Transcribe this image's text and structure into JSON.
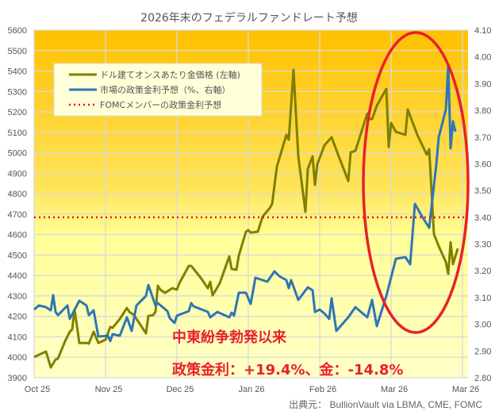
{
  "chart_data": {
    "type": "line",
    "title": "2026年末のフェデラルファンドレート予想",
    "x_ticks": [
      {
        "date": "2025-10-01",
        "label": "Oct 25"
      },
      {
        "date": "2025-10-31",
        "label": "Nov 25"
      },
      {
        "date": "2025-11-30",
        "label": "Dec 25"
      },
      {
        "date": "2025-12-30",
        "label": "Jan 26"
      },
      {
        "date": "2026-01-29",
        "label": "Feb 26"
      },
      {
        "date": "2026-02-28",
        "label": "Mar 26"
      },
      {
        "date": "2026-03-30",
        "label": "Mar 26"
      }
    ],
    "y_left": {
      "min": 3900,
      "max": 5600,
      "step": 100,
      "ticks": [
        "3900",
        "4000",
        "4100",
        "4200",
        "4300",
        "4400",
        "4500",
        "4600",
        "4700",
        "4800",
        "4900",
        "5000",
        "5100",
        "5200",
        "5300",
        "5400",
        "5500",
        "5600"
      ]
    },
    "y_right": {
      "min": 2.8,
      "max": 4.1,
      "step": 0.1,
      "ticks": [
        "2.80",
        "2.90",
        "3.00",
        "3.10",
        "3.20",
        "3.30",
        "3.40",
        "3.50",
        "3.60",
        "3.70",
        "3.80",
        "3.90",
        "4.00",
        "4.10"
      ]
    },
    "grid": true,
    "legend_position": "top-left",
    "series": [
      {
        "name": "ドル建てオンスあたり金価格 (左軸)",
        "axis": "left",
        "color": "#7f7f00",
        "points": [
          [
            "2025-10-01",
            4001
          ],
          [
            "2025-10-03",
            4012
          ],
          [
            "2025-10-06",
            4028
          ],
          [
            "2025-10-08",
            3950
          ],
          [
            "2025-10-10",
            3989
          ],
          [
            "2025-10-11",
            3993
          ],
          [
            "2025-10-14",
            4078
          ],
          [
            "2025-10-16",
            4125
          ],
          [
            "2025-10-17",
            4136
          ],
          [
            "2025-10-18",
            4234
          ],
          [
            "2025-10-20",
            4070
          ],
          [
            "2025-10-23",
            4070
          ],
          [
            "2025-10-24",
            4067
          ],
          [
            "2025-10-26",
            4125
          ],
          [
            "2025-10-28",
            4070
          ],
          [
            "2025-10-31",
            4086
          ],
          [
            "2025-11-02",
            4148
          ],
          [
            "2025-11-03",
            4144
          ],
          [
            "2025-11-06",
            4187
          ],
          [
            "2025-11-09",
            4241
          ],
          [
            "2025-11-10",
            4222
          ],
          [
            "2025-11-12",
            4206
          ],
          [
            "2025-11-17",
            4117
          ],
          [
            "2025-11-18",
            4202
          ],
          [
            "2025-11-20",
            4206
          ],
          [
            "2025-11-21",
            4222
          ],
          [
            "2025-11-22",
            4350
          ],
          [
            "2025-11-23",
            4331
          ],
          [
            "2025-11-25",
            4315
          ],
          [
            "2025-11-28",
            4338
          ],
          [
            "2025-11-30",
            4331
          ],
          [
            "2025-12-01",
            4362
          ],
          [
            "2025-12-05",
            4447
          ],
          [
            "2025-12-06",
            4447
          ],
          [
            "2025-12-10",
            4389
          ],
          [
            "2025-12-13",
            4338
          ],
          [
            "2025-12-14",
            4369
          ],
          [
            "2025-12-15",
            4303
          ],
          [
            "2025-12-18",
            4362
          ],
          [
            "2025-12-22",
            4494
          ],
          [
            "2025-12-23",
            4432
          ],
          [
            "2025-12-25",
            4428
          ],
          [
            "2025-12-26",
            4497
          ],
          [
            "2025-12-29",
            4614
          ],
          [
            "2025-12-30",
            4622
          ],
          [
            "2025-12-31",
            4610
          ],
          [
            "2026-01-03",
            4614
          ],
          [
            "2026-01-05",
            4688
          ],
          [
            "2026-01-08",
            4730
          ],
          [
            "2026-01-09",
            4750
          ],
          [
            "2026-01-11",
            4932
          ],
          [
            "2026-01-15",
            5088
          ],
          [
            "2026-01-16",
            5064
          ],
          [
            "2026-01-18",
            5406
          ],
          [
            "2026-01-20",
            4983
          ],
          [
            "2026-01-23",
            4711
          ],
          [
            "2026-01-24",
            4921
          ],
          [
            "2026-01-26",
            4983
          ],
          [
            "2026-01-27",
            4843
          ],
          [
            "2026-01-28",
            4944
          ],
          [
            "2026-01-31",
            5037
          ],
          [
            "2026-02-03",
            5076
          ],
          [
            "2026-02-06",
            4983
          ],
          [
            "2026-02-10",
            4862
          ],
          [
            "2026-02-11",
            5002
          ],
          [
            "2026-02-13",
            5010
          ],
          [
            "2026-02-18",
            5192
          ],
          [
            "2026-02-19",
            5165
          ],
          [
            "2026-02-20",
            5165
          ],
          [
            "2026-02-22",
            5231
          ],
          [
            "2026-02-26",
            5313
          ],
          [
            "2026-02-27",
            5029
          ],
          [
            "2026-02-28",
            5146
          ],
          [
            "2026-03-02",
            5103
          ],
          [
            "2026-03-06",
            5088
          ],
          [
            "2026-03-07",
            5212
          ],
          [
            "2026-03-11",
            5088
          ],
          [
            "2026-03-15",
            4991
          ],
          [
            "2026-03-16",
            5018
          ],
          [
            "2026-03-18",
            4602
          ],
          [
            "2026-03-20",
            4544
          ],
          [
            "2026-03-23",
            4466
          ],
          [
            "2026-03-24",
            4408
          ],
          [
            "2026-03-25",
            4563
          ],
          [
            "2026-03-26",
            4455
          ],
          [
            "2026-03-28",
            4532
          ]
        ]
      },
      {
        "name": "市場の政策金利予想（%、右軸）",
        "axis": "right",
        "color": "#2e75b6",
        "points": [
          [
            "2025-10-01",
            3.055
          ],
          [
            "2025-10-03",
            3.07
          ],
          [
            "2025-10-06",
            3.064
          ],
          [
            "2025-10-08",
            3.052
          ],
          [
            "2025-10-09",
            3.109
          ],
          [
            "2025-10-10",
            3.046
          ],
          [
            "2025-10-11",
            3.034
          ],
          [
            "2025-10-15",
            3.07
          ],
          [
            "2025-10-16",
            3.02
          ],
          [
            "2025-10-20",
            3.088
          ],
          [
            "2025-10-23",
            3.07
          ],
          [
            "2025-10-24",
            3.034
          ],
          [
            "2025-10-26",
            3.052
          ],
          [
            "2025-10-28",
            2.954
          ],
          [
            "2025-11-01",
            2.957
          ],
          [
            "2025-11-02",
            2.937
          ],
          [
            "2025-11-03",
            2.963
          ],
          [
            "2025-11-06",
            2.957
          ],
          [
            "2025-11-09",
            3.026
          ],
          [
            "2025-11-11",
            2.975
          ],
          [
            "2025-11-13",
            3.07
          ],
          [
            "2025-11-17",
            3.106
          ],
          [
            "2025-11-18",
            3.147
          ],
          [
            "2025-11-21",
            3.07
          ],
          [
            "2025-11-22",
            3.079
          ],
          [
            "2025-11-26",
            3.049
          ],
          [
            "2025-11-27",
            3.023
          ],
          [
            "2025-11-29",
            3.005
          ],
          [
            "2025-11-30",
            3.032
          ],
          [
            "2025-12-05",
            3.049
          ],
          [
            "2025-12-06",
            3.079
          ],
          [
            "2025-12-07",
            3.067
          ],
          [
            "2025-12-13",
            3.046
          ],
          [
            "2025-12-14",
            3.026
          ],
          [
            "2025-12-17",
            3.046
          ],
          [
            "2025-12-22",
            3.026
          ],
          [
            "2025-12-23",
            3.043
          ],
          [
            "2025-12-24",
            3.032
          ],
          [
            "2025-12-26",
            3.118
          ],
          [
            "2025-12-29",
            3.118
          ],
          [
            "2025-12-31",
            3.076
          ],
          [
            "2026-01-02",
            3.174
          ],
          [
            "2026-01-07",
            3.159
          ],
          [
            "2026-01-10",
            3.198
          ],
          [
            "2026-01-12",
            3.18
          ],
          [
            "2026-01-15",
            3.165
          ],
          [
            "2026-01-16",
            3.135
          ],
          [
            "2026-01-17",
            3.165
          ],
          [
            "2026-01-20",
            3.091
          ],
          [
            "2026-01-24",
            3.138
          ],
          [
            "2026-01-26",
            3.127
          ],
          [
            "2026-01-27",
            3.046
          ],
          [
            "2026-01-29",
            3.055
          ],
          [
            "2026-01-31",
            3.04
          ],
          [
            "2026-02-02",
            3.02
          ],
          [
            "2026-02-03",
            3.097
          ],
          [
            "2026-02-05",
            2.975
          ],
          [
            "2026-02-10",
            3.026
          ],
          [
            "2026-02-13",
            3.064
          ],
          [
            "2026-02-18",
            3.026
          ],
          [
            "2026-02-20",
            3.091
          ],
          [
            "2026-02-22",
            2.993
          ],
          [
            "2026-02-26",
            3.106
          ],
          [
            "2026-03-02",
            3.245
          ],
          [
            "2026-03-06",
            3.251
          ],
          [
            "2026-03-08",
            3.224
          ],
          [
            "2026-03-10",
            3.45
          ],
          [
            "2026-03-13",
            3.403
          ],
          [
            "2026-03-16",
            3.361
          ],
          [
            "2026-03-19",
            3.598
          ],
          [
            "2026-03-20",
            3.699
          ],
          [
            "2026-03-23",
            3.803
          ],
          [
            "2026-03-24",
            3.966
          ],
          [
            "2026-03-25",
            3.658
          ],
          [
            "2026-03-26",
            3.759
          ],
          [
            "2026-03-27",
            3.72
          ]
        ]
      },
      {
        "name": "FOMCメンバーの政策金利予想",
        "axis": "right",
        "color": "#ff0000",
        "style": "dotted",
        "value": 3.4
      }
    ],
    "annotations": {
      "line1": "中東紛争勃発以来",
      "line2": "政策金利：+19.4%、金：-14.8%",
      "highlight_color": "#e8202a"
    },
    "source": "出典元： BullionVault  via LBMA, CME, FOMC"
  }
}
